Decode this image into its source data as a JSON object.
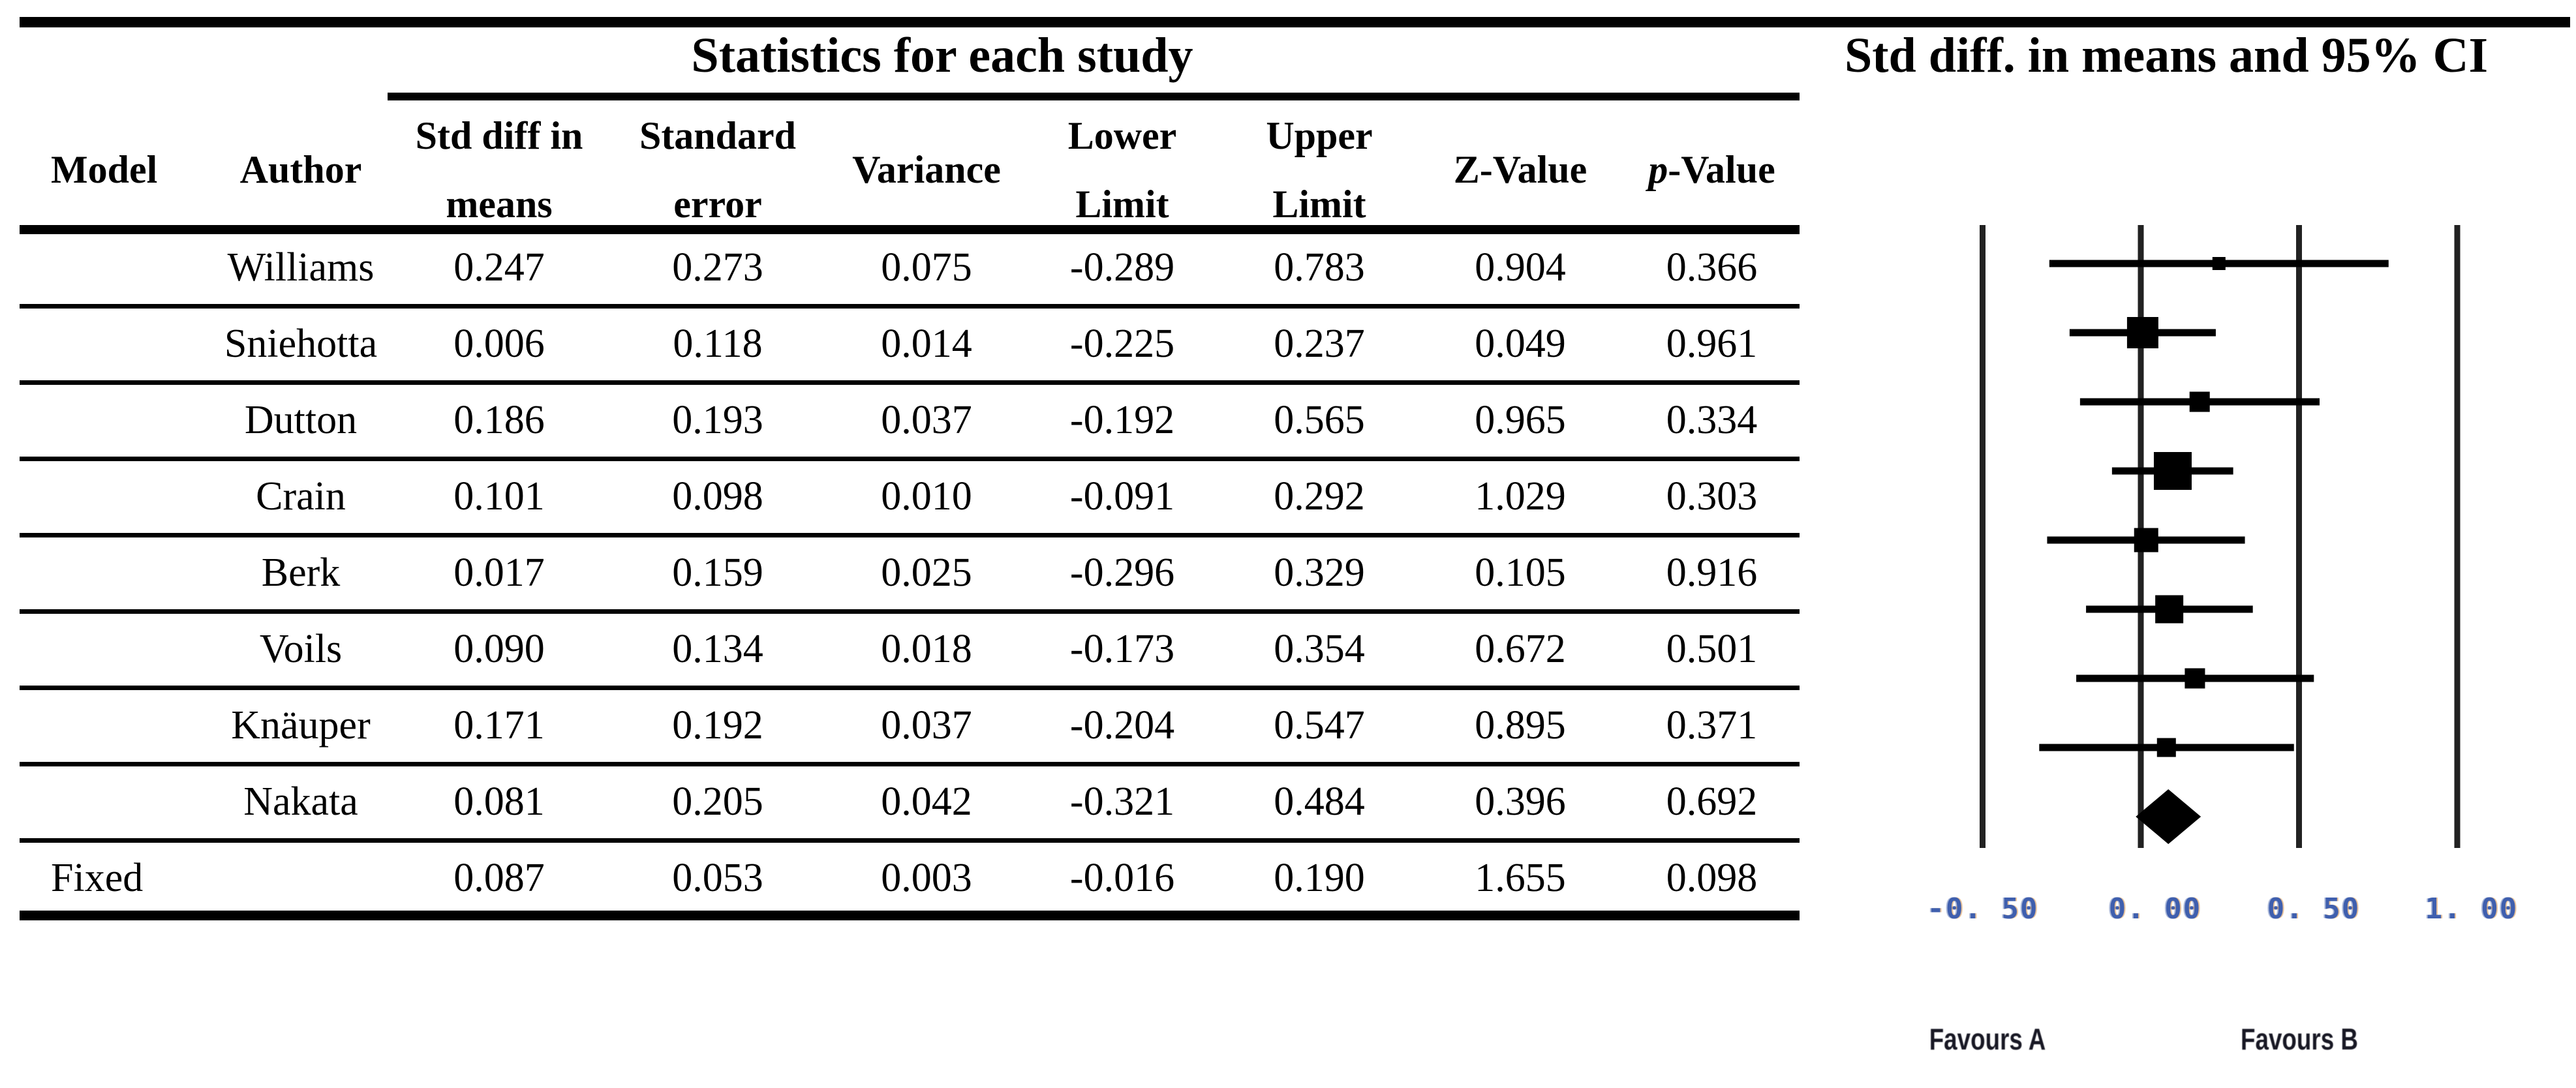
{
  "table": {
    "group_header": "Statistics for each study",
    "headers": [
      {
        "lines": [
          "Model"
        ]
      },
      {
        "lines": [
          "Author"
        ]
      },
      {
        "lines": [
          "Std diff in",
          "means"
        ]
      },
      {
        "lines": [
          "Standard",
          "error"
        ]
      },
      {
        "lines": [
          "Variance"
        ]
      },
      {
        "lines": [
          "Lower",
          "Limit"
        ]
      },
      {
        "lines": [
          "Upper",
          "Limit"
        ]
      },
      {
        "lines": [
          "Z-Value"
        ]
      }
    ],
    "p_header": {
      "prefix": "p",
      "rest": "-Value"
    },
    "rows": [
      {
        "model": "",
        "author": "Williams",
        "std_diff": "0.247",
        "std_err": "0.273",
        "variance": "0.075",
        "lower": "-0.289",
        "upper": "0.783",
        "z": "0.904",
        "p": "0.366"
      },
      {
        "model": "",
        "author": "Sniehotta",
        "std_diff": "0.006",
        "std_err": "0.118",
        "variance": "0.014",
        "lower": "-0.225",
        "upper": "0.237",
        "z": "0.049",
        "p": "0.961"
      },
      {
        "model": "",
        "author": "Dutton",
        "std_diff": "0.186",
        "std_err": "0.193",
        "variance": "0.037",
        "lower": "-0.192",
        "upper": "0.565",
        "z": "0.965",
        "p": "0.334"
      },
      {
        "model": "",
        "author": "Crain",
        "std_diff": "0.101",
        "std_err": "0.098",
        "variance": "0.010",
        "lower": "-0.091",
        "upper": "0.292",
        "z": "1.029",
        "p": "0.303"
      },
      {
        "model": "",
        "author": "Berk",
        "std_diff": "0.017",
        "std_err": "0.159",
        "variance": "0.025",
        "lower": "-0.296",
        "upper": "0.329",
        "z": "0.105",
        "p": "0.916"
      },
      {
        "model": "",
        "author": "Voils",
        "std_diff": "0.090",
        "std_err": "0.134",
        "variance": "0.018",
        "lower": "-0.173",
        "upper": "0.354",
        "z": "0.672",
        "p": "0.501"
      },
      {
        "model": "",
        "author": "Knäuper",
        "std_diff": "0.171",
        "std_err": "0.192",
        "variance": "0.037",
        "lower": "-0.204",
        "upper": "0.547",
        "z": "0.895",
        "p": "0.371"
      },
      {
        "model": "",
        "author": "Nakata",
        "std_diff": "0.081",
        "std_err": "0.205",
        "variance": "0.042",
        "lower": "-0.321",
        "upper": "0.484",
        "z": "0.396",
        "p": "0.692"
      },
      {
        "model": "Fixed",
        "author": "",
        "std_diff": "0.087",
        "std_err": "0.053",
        "variance": "0.003",
        "lower": "-0.016",
        "upper": "0.190",
        "z": "1.655",
        "p": "0.098"
      }
    ]
  },
  "plot": {
    "title": "Std diff. in means and 95% CI",
    "x_ticks": [
      "-0. 50",
      "0. 00",
      "0. 50",
      "1. 00"
    ],
    "favours": [
      "Favours A",
      "Favours B"
    ]
  },
  "chart_data": [
    {
      "type": "table",
      "title": "Statistics for each study",
      "columns": [
        "Model",
        "Author",
        "Std diff in means",
        "Standard error",
        "Variance",
        "Lower Limit",
        "Upper Limit",
        "Z-Value",
        "p-Value"
      ],
      "rows": [
        [
          "",
          "Williams",
          0.247,
          0.273,
          0.075,
          -0.289,
          0.783,
          0.904,
          0.366
        ],
        [
          "",
          "Sniehotta",
          0.006,
          0.118,
          0.014,
          -0.225,
          0.237,
          0.049,
          0.961
        ],
        [
          "",
          "Dutton",
          0.186,
          0.193,
          0.037,
          -0.192,
          0.565,
          0.965,
          0.334
        ],
        [
          "",
          "Crain",
          0.101,
          0.098,
          0.01,
          -0.091,
          0.292,
          1.029,
          0.303
        ],
        [
          "",
          "Berk",
          0.017,
          0.159,
          0.025,
          -0.296,
          0.329,
          0.105,
          0.916
        ],
        [
          "",
          "Voils",
          0.09,
          0.134,
          0.018,
          -0.173,
          0.354,
          0.672,
          0.501
        ],
        [
          "",
          "Knäuper",
          0.171,
          0.192,
          0.037,
          -0.204,
          0.547,
          0.895,
          0.371
        ],
        [
          "",
          "Nakata",
          0.081,
          0.205,
          0.042,
          -0.321,
          0.484,
          0.396,
          0.692
        ],
        [
          "Fixed",
          "",
          0.087,
          0.053,
          0.003,
          -0.016,
          0.19,
          1.655,
          0.098
        ]
      ]
    },
    {
      "type": "scatter",
      "subtype": "forest-plot",
      "title": "Std diff. in means and 95% CI",
      "xlabel": "Std diff in means",
      "xlim": [
        -0.75,
        1.1
      ],
      "axis_ticks": [
        -0.5,
        0,
        0.5,
        1
      ],
      "tick_labels": [
        "-0. 50",
        "0. 00",
        "0. 50",
        "1. 00"
      ],
      "grid": "vertical-lines-only",
      "favours": [
        "Favours A",
        "Favours B"
      ],
      "studies": [
        {
          "name": "Williams",
          "mean": 0.247,
          "lower": -0.289,
          "upper": 0.783,
          "marker_px": 20
        },
        {
          "name": "Sniehotta",
          "mean": 0.006,
          "lower": -0.225,
          "upper": 0.237,
          "marker_px": 48
        },
        {
          "name": "Dutton",
          "mean": 0.186,
          "lower": -0.192,
          "upper": 0.565,
          "marker_px": 31
        },
        {
          "name": "Crain",
          "mean": 0.101,
          "lower": -0.091,
          "upper": 0.292,
          "marker_px": 58
        },
        {
          "name": "Berk",
          "mean": 0.017,
          "lower": -0.296,
          "upper": 0.329,
          "marker_px": 37
        },
        {
          "name": "Voils",
          "mean": 0.09,
          "lower": -0.173,
          "upper": 0.354,
          "marker_px": 43
        },
        {
          "name": "Knäuper",
          "mean": 0.171,
          "lower": -0.204,
          "upper": 0.547,
          "marker_px": 31
        },
        {
          "name": "Nakata",
          "mean": 0.081,
          "lower": -0.321,
          "upper": 0.484,
          "marker_px": 29
        }
      ],
      "summary": {
        "name": "Fixed",
        "mean": 0.087,
        "lower": -0.016,
        "upper": 0.19,
        "marker": "diamond"
      }
    }
  ]
}
